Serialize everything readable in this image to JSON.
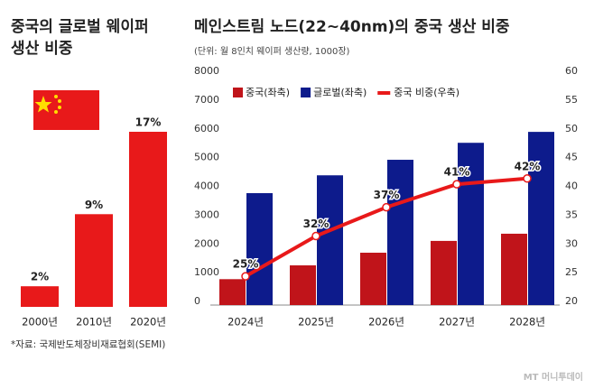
{
  "chart_data": [
    {
      "type": "bar",
      "title": [
        "중국의 글로벌 웨이퍼",
        "생산 비중"
      ],
      "categories": [
        "2000년",
        "2010년",
        "2020년"
      ],
      "values": [
        2,
        9,
        17
      ],
      "value_labels": [
        "2%",
        "9%",
        "17%"
      ],
      "color": "#e8191a",
      "source": "*자료: 국제반도체장비재료협회(SEMI)"
    },
    {
      "type": "bar_line",
      "title": "메인스트림 노드(22~40nm)의 중국 생산 비중",
      "subtitle": "(단위: 월 8인치 웨이퍼 생산량, 1000장)",
      "categories": [
        "2024년",
        "2025년",
        "2026년",
        "2027년",
        "2028년"
      ],
      "series": [
        {
          "name": "중국(좌축)",
          "color": "#c0141a",
          "values": [
            900,
            1380,
            1820,
            2230,
            2480
          ]
        },
        {
          "name": "글로벌(좌축)",
          "color": "#0d1b8c",
          "values": [
            3890,
            4510,
            5050,
            5640,
            6020
          ]
        },
        {
          "name": "중국 비중(우축)",
          "color": "#e8191a",
          "axis": "y2",
          "values": [
            25,
            32,
            37,
            41,
            42
          ],
          "value_labels": [
            "25%",
            "32%",
            "37%",
            "41%",
            "42%"
          ]
        }
      ],
      "ylim": [
        0,
        8000
      ],
      "yticks": [
        0,
        1000,
        2000,
        3000,
        4000,
        5000,
        6000,
        7000,
        8000
      ],
      "y2lim": [
        20,
        60
      ],
      "y2ticks": [
        20,
        25,
        30,
        35,
        40,
        45,
        50,
        55,
        60
      ]
    }
  ],
  "watermark": "MT 머니투데이"
}
